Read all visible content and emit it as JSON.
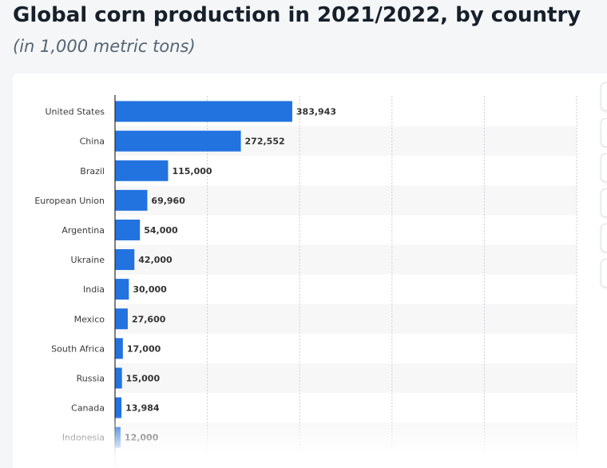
{
  "header": {
    "title": "Global corn production in 2021/2022, by country",
    "subtitle": "(in 1,000 metric tons)"
  },
  "colors": {
    "bar": "#2272e0",
    "stripe": "#f7f7f7",
    "grid": "#c9ced4",
    "axis": "#2c2c2c",
    "label": "#3a3a3a",
    "value": "#333333"
  },
  "chart_data": {
    "type": "bar",
    "orientation": "horizontal",
    "categories": [
      "United States",
      "China",
      "Brazil",
      "European Union",
      "Argentina",
      "Ukraine",
      "India",
      "Mexico",
      "South Africa",
      "Russia",
      "Canada",
      "Indonesia"
    ],
    "values": [
      383943,
      272552,
      115000,
      69960,
      54000,
      42000,
      30000,
      27600,
      17000,
      15000,
      13984,
      12000
    ],
    "value_labels": [
      "383,943",
      "272,552",
      "115,000",
      "69,960",
      "54,000",
      "42,000",
      "30,000",
      "27,600",
      "17,000",
      "15,000",
      "13,984",
      "12,000"
    ],
    "title": "",
    "xlabel": "",
    "ylabel": "",
    "xlim": [
      0,
      1000000
    ],
    "grid": true,
    "legend": "none"
  },
  "side_tools": [
    {
      "icon": "favorite-icon"
    },
    {
      "icon": "download-icon"
    },
    {
      "icon": "settings-icon"
    },
    {
      "icon": "share-icon"
    },
    {
      "icon": "print-icon"
    },
    {
      "icon": "info-icon"
    }
  ]
}
